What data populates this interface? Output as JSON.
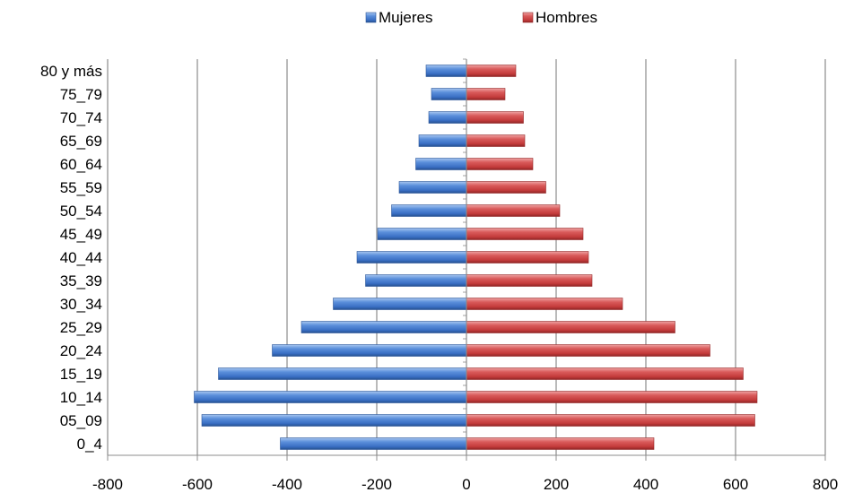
{
  "chart_data": {
    "type": "bar",
    "orientation": "horizontal",
    "title": "",
    "xlabel": "",
    "ylabel": "",
    "xlim": [
      -800,
      800
    ],
    "xticks": [
      -800,
      -600,
      -400,
      -200,
      0,
      200,
      400,
      600,
      800
    ],
    "grid": true,
    "legend_position": "top",
    "categories": [
      "80 y más",
      "75_79",
      "70_74",
      "65_69",
      "60_64",
      "55_59",
      "50_54",
      "45_49",
      "40_44",
      "35_39",
      "30_34",
      "25_29",
      "20_24",
      "15_19",
      "10_14",
      "05_09",
      "0_4"
    ],
    "series": [
      {
        "name": "Mujeres",
        "color": "#4a7fcf",
        "values": [
          -90,
          -78,
          -84,
          -106,
          -113,
          -150,
          -167,
          -198,
          -244,
          -225,
          -297,
          -368,
          -433,
          -553,
          -607,
          -590,
          -415
        ]
      },
      {
        "name": "Hombres",
        "color": "#cc4444",
        "values": [
          110,
          86,
          127,
          130,
          148,
          177,
          208,
          260,
          272,
          280,
          348,
          465,
          543,
          617,
          648,
          643,
          418
        ]
      }
    ]
  }
}
